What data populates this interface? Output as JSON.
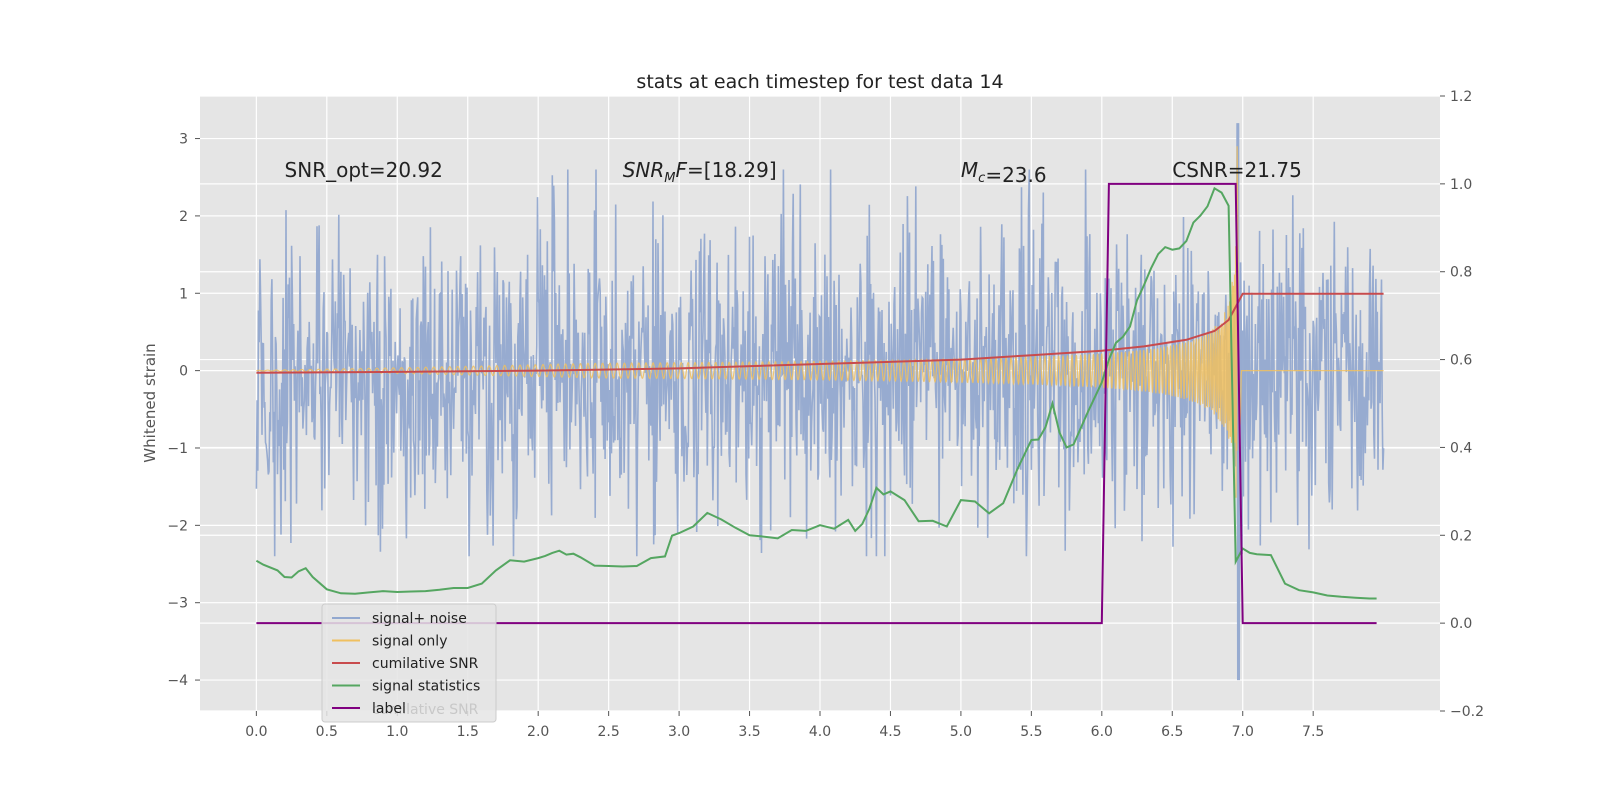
{
  "chart_data": {
    "type": "line",
    "title": "stats at each timestep for test data 14",
    "ylabel": "Whitened strain",
    "y2label": "",
    "xlim": [
      -0.4,
      8.4
    ],
    "ylim": [
      -4.4,
      3.55
    ],
    "y2lim": [
      -0.2,
      1.2
    ],
    "grid": true,
    "xticks": [
      "0.0",
      "0.5",
      "1.0",
      "1.5",
      "2.0",
      "2.5",
      "3.0",
      "3.5",
      "4.0",
      "4.5",
      "5.0",
      "5.5",
      "6.0",
      "6.5",
      "7.0",
      "7.5"
    ],
    "yticks": [
      "−4",
      "−3",
      "−2",
      "−1",
      "0",
      "1",
      "2",
      "3"
    ],
    "y2ticks": [
      "−0.2",
      "0.0",
      "0.2",
      "0.4",
      "0.6",
      "0.8",
      "1.0",
      "1.2"
    ],
    "annotations": [
      {
        "text": "SNR_opt=20.92",
        "x": 0.2,
        "y": 2.5
      },
      {
        "text": "SNR_MF=[18.29]",
        "x": 2.6,
        "y": 2.5
      },
      {
        "text": "M_c=23.6",
        "x": 5.0,
        "y": 2.5
      },
      {
        "text": "CSNR=21.75",
        "x": 6.5,
        "y": 2.5
      }
    ],
    "legend_placement": "lower-left",
    "legend_ghost_text": "cumilative SNR",
    "series": [
      {
        "name": "signal+ noise",
        "axis": "left",
        "color": "#92a8cf",
        "description": "white noise of amplitude ~1.2 spanning 0.0 to 8.0 with peaks near +3.2 and -4.0 at t=6.97"
      },
      {
        "name": "signal only",
        "axis": "left",
        "color": "#f0c05f",
        "description": "chirp growing in amplitude and frequency, peaking at ~2.9 near t=6.95, then flat at 0"
      },
      {
        "name": "cumilative SNR",
        "axis": "right",
        "color": "#c84b4d",
        "x": [
          0.0,
          1.0,
          2.0,
          3.0,
          4.0,
          5.0,
          5.5,
          6.0,
          6.3,
          6.6,
          6.8,
          6.9,
          6.95,
          7.0,
          8.0
        ],
        "values": [
          0.57,
          0.572,
          0.575,
          0.58,
          0.59,
          0.6,
          0.61,
          0.62,
          0.63,
          0.645,
          0.665,
          0.69,
          0.72,
          0.75,
          0.75
        ]
      },
      {
        "name": "signal statistics",
        "axis": "right",
        "color": "#55a661",
        "x": [
          0.0,
          0.05,
          0.15,
          0.2,
          0.25,
          0.3,
          0.35,
          0.4,
          0.5,
          0.6,
          0.7,
          0.8,
          0.9,
          1.0,
          1.1,
          1.2,
          1.3,
          1.4,
          1.5,
          1.6,
          1.7,
          1.8,
          1.9,
          2.0,
          2.05,
          2.1,
          2.15,
          2.2,
          2.25,
          2.3,
          2.4,
          2.5,
          2.6,
          2.7,
          2.8,
          2.9,
          2.95,
          3.0,
          3.1,
          3.2,
          3.3,
          3.4,
          3.5,
          3.6,
          3.7,
          3.8,
          3.9,
          4.0,
          4.1,
          4.2,
          4.25,
          4.3,
          4.35,
          4.4,
          4.45,
          4.5,
          4.6,
          4.7,
          4.8,
          4.9,
          5.0,
          5.1,
          5.2,
          5.3,
          5.4,
          5.5,
          5.55,
          5.6,
          5.65,
          5.7,
          5.75,
          5.8,
          5.9,
          6.0,
          6.05,
          6.1,
          6.15,
          6.2,
          6.25,
          6.3,
          6.35,
          6.4,
          6.45,
          6.5,
          6.55,
          6.6,
          6.65,
          6.7,
          6.75,
          6.8,
          6.85,
          6.9,
          6.95,
          7.0,
          7.05,
          7.1,
          7.2,
          7.3,
          7.4,
          7.5,
          7.6,
          7.7,
          7.8,
          7.9,
          7.95
        ],
        "values": [
          0.142,
          0.133,
          0.12,
          0.105,
          0.104,
          0.118,
          0.125,
          0.105,
          0.077,
          0.068,
          0.067,
          0.07,
          0.073,
          0.071,
          0.072,
          0.073,
          0.076,
          0.08,
          0.08,
          0.09,
          0.12,
          0.143,
          0.14,
          0.148,
          0.153,
          0.16,
          0.165,
          0.156,
          0.158,
          0.15,
          0.131,
          0.13,
          0.129,
          0.13,
          0.148,
          0.152,
          0.199,
          0.205,
          0.22,
          0.251,
          0.236,
          0.217,
          0.2,
          0.197,
          0.193,
          0.212,
          0.21,
          0.223,
          0.215,
          0.235,
          0.21,
          0.226,
          0.26,
          0.308,
          0.293,
          0.3,
          0.28,
          0.232,
          0.233,
          0.22,
          0.28,
          0.277,
          0.25,
          0.273,
          0.35,
          0.417,
          0.418,
          0.446,
          0.5,
          0.434,
          0.4,
          0.407,
          0.48,
          0.548,
          0.6,
          0.638,
          0.652,
          0.675,
          0.735,
          0.77,
          0.808,
          0.84,
          0.856,
          0.85,
          0.853,
          0.87,
          0.912,
          0.928,
          0.949,
          0.99,
          0.98,
          0.95,
          0.14,
          0.17,
          0.16,
          0.157,
          0.155,
          0.09,
          0.075,
          0.07,
          0.063,
          0.06,
          0.058,
          0.056,
          0.056
        ]
      },
      {
        "name": "label",
        "axis": "right",
        "color": "#800080",
        "x": [
          0.0,
          6.0,
          6.05,
          6.95,
          7.0,
          7.95
        ],
        "values": [
          0.0,
          0.0,
          1.0,
          1.0,
          0.0,
          0.0
        ]
      }
    ]
  }
}
